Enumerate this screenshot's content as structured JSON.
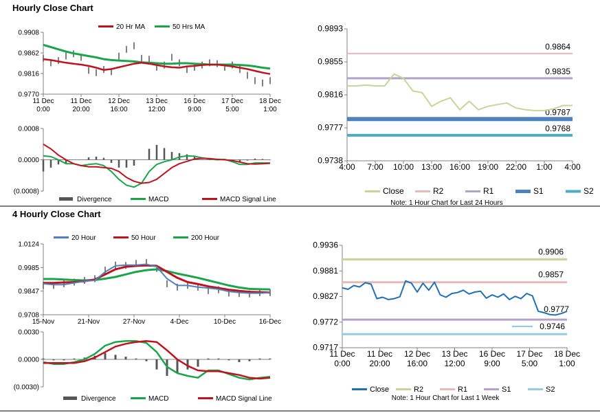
{
  "page": {
    "top_title": "Hourly Close Chart",
    "bottom_title": "4 Hourly Close Chart"
  },
  "chart_data": [
    {
      "id": "hourly-price",
      "type": "line",
      "ylim": [
        0.977,
        0.9908
      ],
      "y_ticks": [
        "0.9908",
        "0.9862",
        "0.9816",
        "0.9770"
      ],
      "x_ticks": [
        "11 Dec\n0:00",
        "11 Dec\n20:00",
        "12 Dec\n16:00",
        "13 Dec\n12:00",
        "16 Dec\n9:00",
        "17 Dec\n5:00",
        "18 Dec\n1:00"
      ],
      "legend": [
        "20 Hr MA",
        "50 Hrs MA"
      ],
      "colors": {
        "ma20": "#c0111f",
        "ma50": "#1aa54a",
        "price": "#000000"
      },
      "series": [
        {
          "name": "20 Hr MA",
          "values": [
            0.9848,
            0.9846,
            0.9843,
            0.984,
            0.9838,
            0.9836,
            0.9833,
            0.9829,
            0.9824,
            0.9826,
            0.983,
            0.9834,
            0.9838,
            0.984,
            0.9838,
            0.9835,
            0.9832,
            0.983,
            0.9829,
            0.9832,
            0.9833,
            0.9835,
            0.9836,
            0.9836,
            0.9834,
            0.9832,
            0.9829,
            0.9826,
            0.9822,
            0.9818,
            0.9815
          ]
        },
        {
          "name": "50 Hrs MA",
          "values": [
            0.988,
            0.9875,
            0.987,
            0.9865,
            0.9861,
            0.9858,
            0.9855,
            0.9852,
            0.9848,
            0.9846,
            0.9845,
            0.9844,
            0.9843,
            0.9841,
            0.984,
            0.9839,
            0.9838,
            0.9838,
            0.9839,
            0.9839,
            0.9838,
            0.9837,
            0.9836,
            0.9836,
            0.9836,
            0.9836,
            0.9835,
            0.9834,
            0.9832,
            0.9829,
            0.9827
          ]
        },
        {
          "name": "Close",
          "values": [
            0.985,
            0.984,
            0.9845,
            0.9855,
            0.986,
            0.9852,
            0.9823,
            0.9818,
            0.9825,
            0.982,
            0.9855,
            0.987,
            0.9878,
            0.985,
            0.9848,
            0.983,
            0.9835,
            0.9852,
            0.984,
            0.9825,
            0.983,
            0.9835,
            0.984,
            0.9838,
            0.983,
            0.9835,
            0.9825,
            0.9812,
            0.98,
            0.9795,
            0.98
          ]
        }
      ]
    },
    {
      "id": "hourly-macd",
      "type": "line",
      "ylim": [
        -0.0008,
        0.0008
      ],
      "y_ticks": [
        "0.0008",
        "0.0000",
        "(0.0008)"
      ],
      "legend": [
        "Divergence",
        "MACD",
        "MACD Signal Line"
      ],
      "colors": {
        "macd": "#1aa54a",
        "signal": "#c0111f",
        "divergence": "#555555"
      },
      "series": [
        {
          "name": "MACD",
          "values": [
            0.0001,
            8e-05,
            0.0,
            -0.0001,
            -0.0001,
            -0.00015,
            -0.00012,
            -0.0001,
            -0.00015,
            -0.0003,
            -0.0005,
            -0.00065,
            -0.0007,
            -0.0006,
            -0.0003,
            -0.00012,
            -5e-05,
            0.0,
            7e-05,
            0.0001,
            9e-05,
            5e-05,
            2e-05,
            0.0,
            1e-05,
            -5e-05,
            -0.00012,
            -0.00012,
            -8e-05,
            -8e-05,
            -8e-05
          ]
        },
        {
          "name": "MACD Signal Line",
          "values": [
            0.0004,
            0.00028,
            0.00012,
            0.0,
            -0.0001,
            -0.00015,
            -0.00018,
            -0.00018,
            -0.0002,
            -0.00022,
            -0.0003,
            -0.00045,
            -0.00055,
            -0.0006,
            -0.00058,
            -0.0005,
            -0.00035,
            -0.0002,
            -0.0001,
            -4e-05,
            2e-05,
            4e-05,
            3e-05,
            1e-05,
            0.0,
            -2e-05,
            -6e-05,
            -0.0001,
            -0.00011,
            -0.0001,
            -9e-05
          ]
        },
        {
          "name": "Divergence",
          "values": [
            -0.0003,
            -0.0002,
            -0.00012,
            -0.0001,
            0.0,
            0.0,
            6e-05,
            8e-05,
            5e-05,
            -8e-05,
            -0.0002,
            -0.0002,
            -0.00015,
            0.0,
            0.00028,
            0.00038,
            0.0003,
            0.0002,
            0.00017,
            0.00014,
            7e-05,
            1e-05,
            -1e-05,
            -1e-05,
            1e-05,
            -3e-05,
            -6e-05,
            -2e-05,
            3e-05,
            2e-05,
            1e-05
          ]
        }
      ]
    },
    {
      "id": "hourly-levels",
      "type": "line",
      "ylim": [
        0.9738,
        0.9893
      ],
      "y_ticks": [
        "0.9893",
        "0.9855",
        "0.9816",
        "0.9777",
        "0.9738"
      ],
      "x_ticks": [
        "4:00",
        "7:00",
        "10:00",
        "13:00",
        "16:00",
        "19:00",
        "22:00",
        "1:00",
        "4:00"
      ],
      "legend": [
        "Close",
        "R2",
        "R1",
        "S1",
        "S2"
      ],
      "note": "Note: 1 Hour Chart for Last 24 Hours",
      "colors": {
        "close": "#c3d69b",
        "r2": "#e6b9b8",
        "r1": "#b3a2c7",
        "s1": "#4f81bd",
        "s2": "#4bacc6"
      },
      "levels": [
        {
          "name": "R2",
          "value": 0.9864,
          "label": "0.9864"
        },
        {
          "name": "R1",
          "value": 0.9835,
          "label": "0.9835"
        },
        {
          "name": "S1",
          "value": 0.9787,
          "label": "0.9787"
        },
        {
          "name": "S2",
          "value": 0.9768,
          "label": "0.9768"
        }
      ],
      "series": [
        {
          "name": "Close",
          "values": [
            0.9826,
            0.9826,
            0.9827,
            0.9826,
            0.9826,
            0.984,
            0.9835,
            0.982,
            0.9818,
            0.9802,
            0.9808,
            0.9812,
            0.9798,
            0.9808,
            0.9798,
            0.9802,
            0.9804,
            0.9806,
            0.98,
            0.9798,
            0.9797,
            0.9797,
            0.9799,
            0.9803,
            0.9803
          ]
        }
      ]
    },
    {
      "id": "four-hourly-price",
      "type": "line",
      "ylim": [
        0.9708,
        1.0124
      ],
      "y_ticks": [
        "1.0124",
        "0.9985",
        "0.9847",
        "0.9708"
      ],
      "x_ticks": [
        "15-Nov",
        "21-Nov",
        "27-Nov",
        "4-Dec",
        "10-Dec",
        "16-Dec"
      ],
      "legend": [
        "20 Hour",
        "50 Hour",
        "200 Hour"
      ],
      "colors": {
        "h20": "#4f81bd",
        "h50": "#c0111f",
        "h200": "#1aa54a",
        "price": "#000000"
      },
      "series": [
        {
          "name": "20 Hour",
          "values": [
            0.989,
            0.9885,
            0.9885,
            0.9895,
            0.9905,
            0.991,
            0.996,
            0.9995,
            1.0,
            1.0,
            1.0005,
            0.999,
            0.992,
            0.988,
            0.988,
            0.987,
            0.9865,
            0.9858,
            0.9845,
            0.9838,
            0.9835,
            0.9835,
            0.9838
          ]
        },
        {
          "name": "50 Hour",
          "values": [
            0.9895,
            0.9895,
            0.9898,
            0.99,
            0.9905,
            0.9915,
            0.9945,
            0.9975,
            0.999,
            0.9995,
            0.9998,
            0.9995,
            0.996,
            0.9925,
            0.99,
            0.9888,
            0.9875,
            0.9865,
            0.9855,
            0.9848,
            0.9843,
            0.984,
            0.9838
          ]
        },
        {
          "name": "200 Hour",
          "values": [
            0.9918,
            0.9918,
            0.9915,
            0.9912,
            0.991,
            0.9912,
            0.992,
            0.993,
            0.9945,
            0.996,
            0.997,
            0.9975,
            0.9965,
            0.995,
            0.9938,
            0.9925,
            0.991,
            0.9895,
            0.988,
            0.9868,
            0.986,
            0.9858,
            0.9857
          ]
        },
        {
          "name": "Close",
          "values": [
            0.988,
            0.988,
            0.989,
            0.99,
            0.991,
            0.992,
            0.997,
            1.0,
            0.9998,
            1.001,
            1.0015,
            0.998,
            0.989,
            0.987,
            0.988,
            0.987,
            0.985,
            0.9855,
            0.9835,
            0.9832,
            0.983,
            0.9838,
            0.9838
          ]
        }
      ]
    },
    {
      "id": "four-hourly-macd",
      "type": "line",
      "ylim": [
        -0.003,
        0.003
      ],
      "y_ticks": [
        "0.0030",
        "0.0000",
        "(0.0030)"
      ],
      "legend": [
        "Divergence",
        "MACD",
        "MACD Signal Line"
      ],
      "colors": {
        "macd": "#1aa54a",
        "signal": "#c0111f",
        "divergence": "#555555"
      },
      "series": [
        {
          "name": "MACD",
          "values": [
            -0.0003,
            -0.0005,
            -0.0005,
            -0.0003,
            0.0,
            0.0006,
            0.0015,
            0.0019,
            0.002,
            0.002,
            0.0018,
            0.0008,
            -0.0008,
            -0.0015,
            -0.0018,
            -0.002,
            -0.0012,
            -0.0012,
            -0.0016,
            -0.002,
            -0.0022,
            -0.002,
            -0.0019
          ]
        },
        {
          "name": "MACD Signal Line",
          "values": [
            -0.0004,
            -0.0004,
            -0.0004,
            -0.0004,
            -0.0002,
            0.0002,
            0.0008,
            0.0014,
            0.0017,
            0.0019,
            0.002,
            0.0019,
            0.001,
            0.0,
            -0.0007,
            -0.0012,
            -0.0013,
            -0.0013,
            -0.0015,
            -0.0017,
            -0.002,
            -0.0021,
            -0.002
          ]
        },
        {
          "name": "Divergence",
          "values": [
            0.0001,
            -0.0001,
            -0.0001,
            0.0001,
            0.0002,
            0.0004,
            0.0007,
            0.0005,
            0.0003,
            0.0001,
            -0.0002,
            -0.0011,
            -0.0018,
            -0.0015,
            -0.0011,
            -0.0008,
            0.0001,
            0.0001,
            -0.0001,
            -0.0003,
            -0.0002,
            0.0001,
            0.0001
          ]
        }
      ]
    },
    {
      "id": "four-hourly-levels",
      "type": "line",
      "ylim": [
        0.9717,
        0.9936
      ],
      "y_ticks": [
        "0.9936",
        "0.9881",
        "0.9827",
        "0.9772",
        "0.9717"
      ],
      "x_ticks": [
        "11 Dec\n0:00",
        "11 Dec\n20:00",
        "12 Dec\n16:00",
        "13 Dec\n12:00",
        "16 Dec\n9:00",
        "17 Dec\n5:00",
        "18 Dec\n1:00"
      ],
      "legend": [
        "Close",
        "R2",
        "R1",
        "S1",
        "S2"
      ],
      "note": "Note: 1 Hour Chart for Last 1 Week",
      "colors": {
        "close": "#1f6fb2",
        "r2": "#c3d69b",
        "r1": "#e6b9b8",
        "s1": "#b3a2c7",
        "s2": "#93cddd"
      },
      "levels": [
        {
          "name": "R2",
          "value": 0.9906,
          "label": "0.9906"
        },
        {
          "name": "R1",
          "value": 0.9857,
          "label": "0.9857"
        },
        {
          "name": "S1",
          "value": 0.9777,
          "label": "0.9777"
        },
        {
          "name": "S2",
          "value": 0.9746,
          "label": "0.9746"
        }
      ],
      "series": [
        {
          "name": "Close",
          "values": [
            0.9845,
            0.9842,
            0.985,
            0.9847,
            0.9856,
            0.9853,
            0.9822,
            0.9825,
            0.982,
            0.9822,
            0.9826,
            0.986,
            0.9855,
            0.9836,
            0.9855,
            0.984,
            0.9857,
            0.983,
            0.9825,
            0.9833,
            0.9835,
            0.984,
            0.9832,
            0.9836,
            0.9838,
            0.9823,
            0.983,
            0.9825,
            0.9832,
            0.982,
            0.9827,
            0.9822,
            0.9833,
            0.9828,
            0.9795,
            0.9792,
            0.9788,
            0.9787,
            0.979,
            0.9795
          ]
        }
      ]
    }
  ]
}
